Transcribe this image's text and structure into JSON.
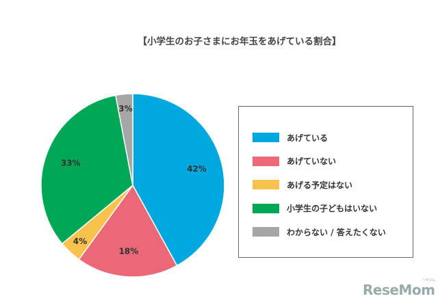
{
  "chart_data": {
    "type": "pie",
    "title": "【小学生のお子さまにお年玉をあげている割合】",
    "slices": [
      {
        "label": "あげている",
        "value": 42,
        "display": "42%",
        "color": "#00a8e0"
      },
      {
        "label": "あげていない",
        "value": 18,
        "display": "18%",
        "color": "#ea6878"
      },
      {
        "label": "あげる予定はない",
        "value": 4,
        "display": "4%",
        "color": "#f9c24d"
      },
      {
        "label": "小学生の子どもはいない",
        "value": 33,
        "display": "33%",
        "color": "#00a856"
      },
      {
        "label": "わからない / 答えたくない",
        "value": 3,
        "display": "3%",
        "color": "#a6a6a6"
      }
    ],
    "start": "top",
    "direction": "clockwise",
    "legend_position": "right"
  },
  "logo": {
    "text": "ReseMom",
    "sub": "リセマム"
  }
}
